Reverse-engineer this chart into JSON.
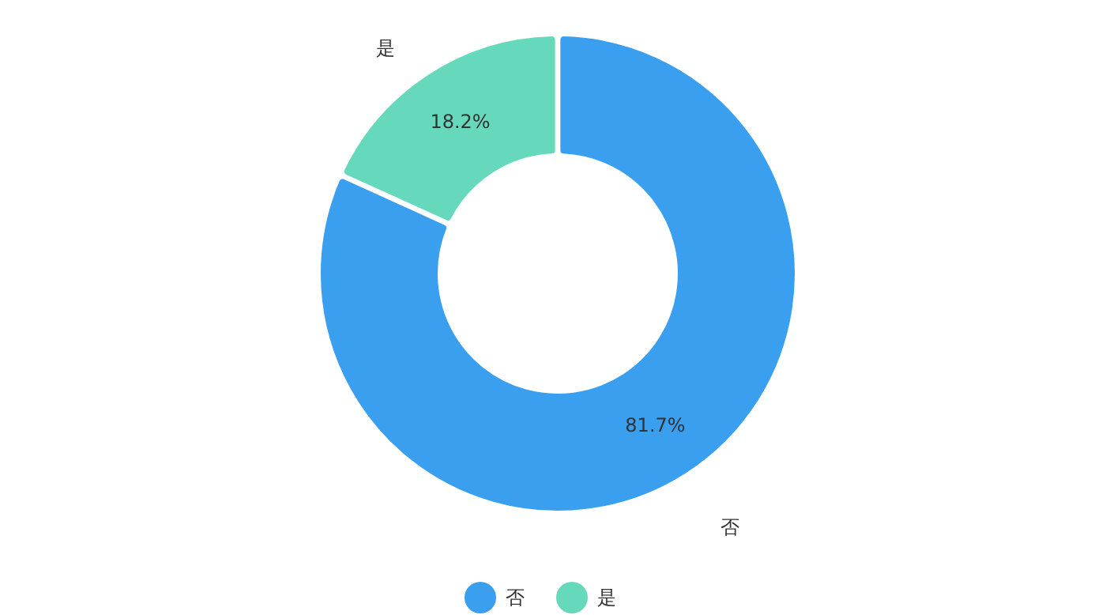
{
  "chart_data": {
    "type": "donut",
    "categories": [
      "否",
      "是"
    ],
    "values": [
      81.7,
      18.2
    ],
    "colors": [
      "#3a9fee",
      "#66d9bd"
    ],
    "value_labels": [
      "81.7%",
      "18.2%"
    ],
    "legend": "bottom"
  }
}
